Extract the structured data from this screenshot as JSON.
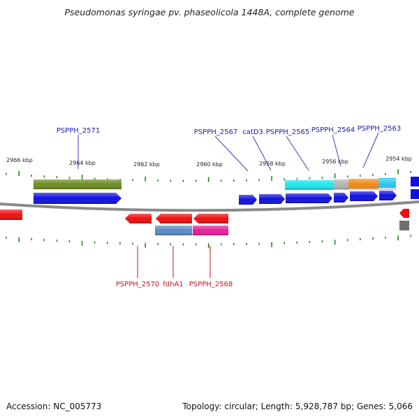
{
  "title": "Pseudomonas syringae pv. phaseolicola 1448A, complete genome",
  "footer": {
    "accession": "Accession: NC_005773",
    "summary": "Topology: circular; Length: 5,928,787 bp; Genes: 5,066"
  },
  "scale_labels": [
    "2966 kbp",
    "2964 kbp",
    "2962 kbp",
    "2960 kbp",
    "2958 kbp",
    "2956 kbp",
    "2954 kbp"
  ],
  "top_gene_labels": [
    "PSPPH_2571",
    "PSPPH_2567",
    "catD3",
    "PSPPH_2565",
    "PSPPH_2564",
    "PSPPH_2563"
  ],
  "bottom_gene_labels": [
    "PSPPH_2570",
    "fdhA1",
    "PSPPH_2568"
  ],
  "colors": {
    "forward_gene": "#1010e0",
    "reverse_gene": "#ee0e0e",
    "tick": "#1a7a1a",
    "backbone": "#8a8a8a",
    "label_forward": "#1a1aa8",
    "label_reverse": "#c4141b",
    "olive_feature": "#6e8a22",
    "cyan_feature": "#22e6f0",
    "orange_feature": "#f08a10",
    "gray_feature": "#b4b4b4",
    "steel_feature": "#5a8cc0",
    "magenta_feature": "#e61e96"
  }
}
